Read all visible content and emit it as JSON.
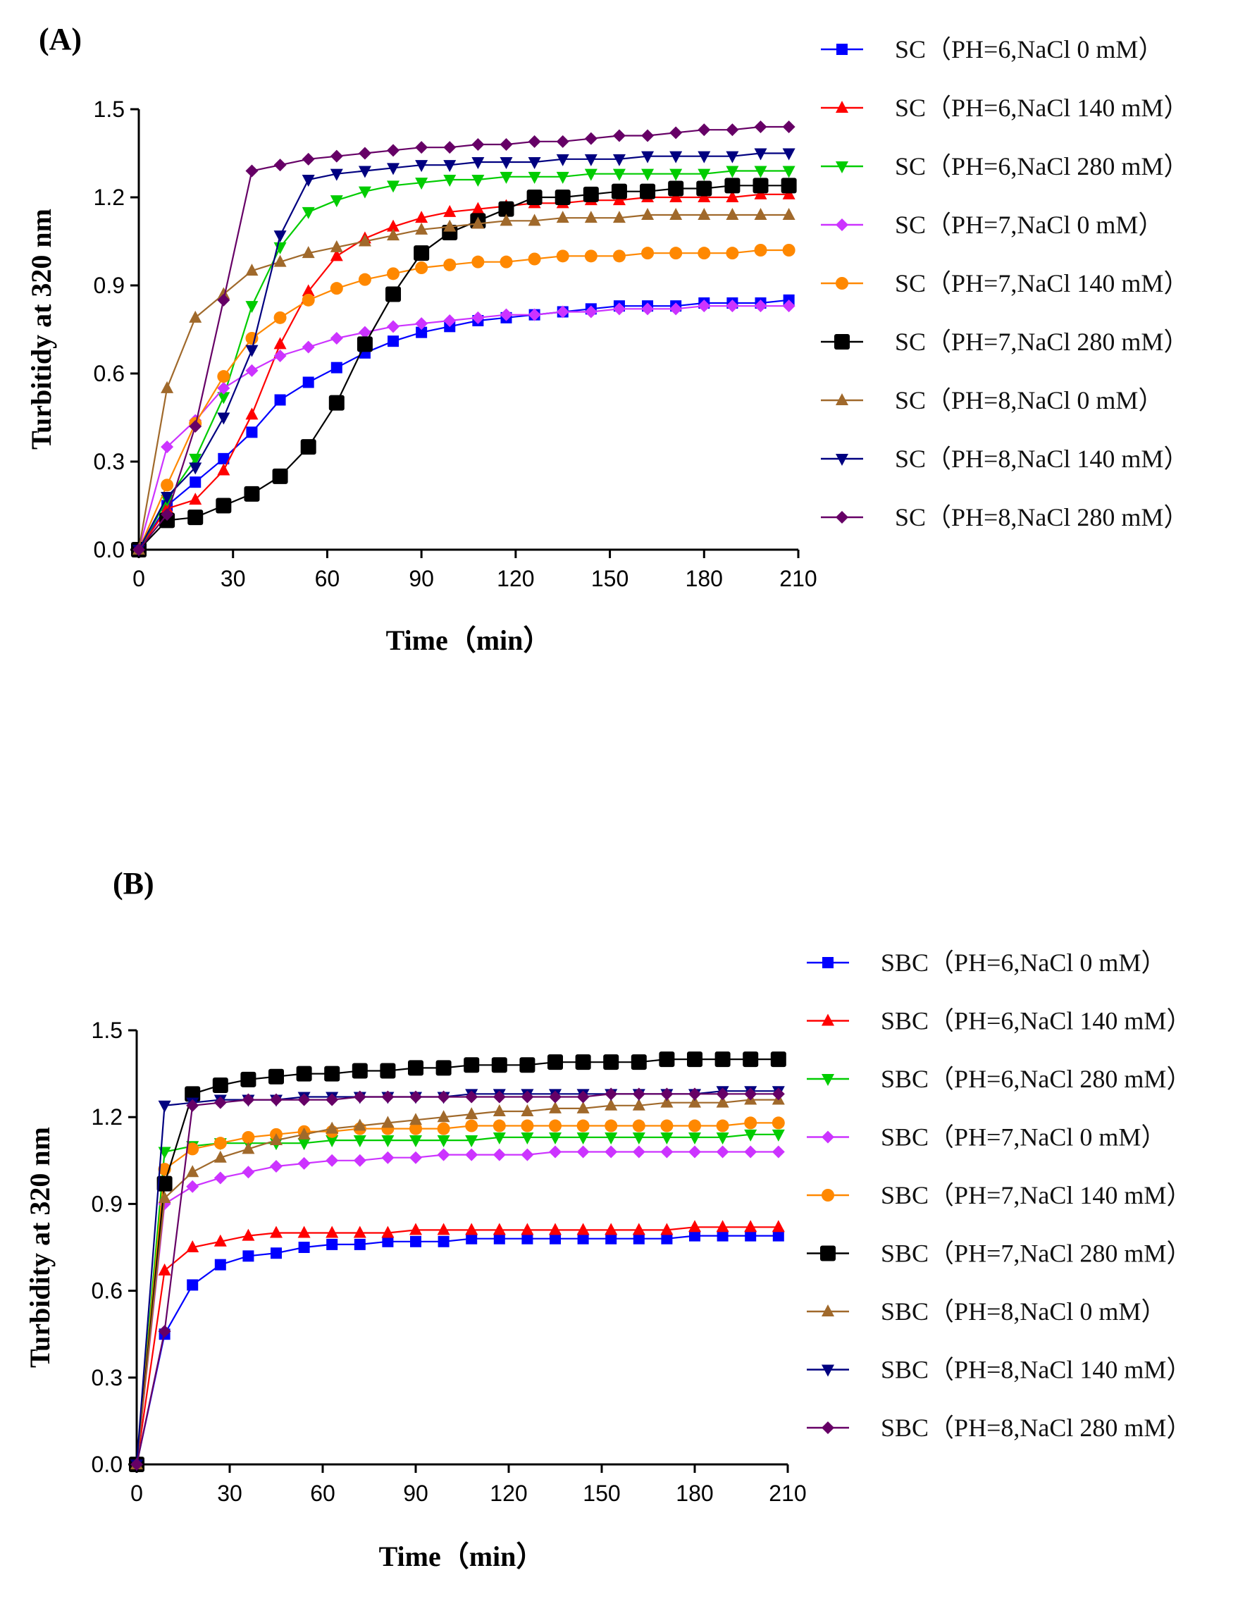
{
  "chart_data": [
    {
      "type": "line",
      "panel_label": "(A)",
      "xlabel": "Time（min）",
      "ylabel": "Turbitidy at 320 nm",
      "xlim": [
        0,
        210
      ],
      "ylim": [
        0,
        1.5
      ],
      "xticks": [
        0,
        30,
        60,
        90,
        120,
        150,
        180,
        210
      ],
      "xtick_labels": [
        "0",
        "30",
        "60",
        "90",
        "120",
        "150",
        "180",
        "210"
      ],
      "yticks": [
        0,
        0.3,
        0.6,
        0.9,
        1.2,
        1.5
      ],
      "ytick_labels": [
        "0.0",
        "0.3",
        "0.6",
        "0.9",
        "1.2",
        "1.5"
      ],
      "x": [
        0,
        9,
        18,
        27,
        36,
        45,
        54,
        63,
        72,
        81,
        90,
        99,
        108,
        117,
        126,
        135,
        144,
        153,
        162,
        171,
        180,
        189,
        198,
        207
      ],
      "legend_position": "right",
      "series": [
        {
          "name": "SC（PH=6,NaCl 0 mM）",
          "color": "#0000FF",
          "marker": "square",
          "values": [
            0,
            0.15,
            0.23,
            0.31,
            0.4,
            0.51,
            0.57,
            0.62,
            0.67,
            0.71,
            0.74,
            0.76,
            0.78,
            0.79,
            0.8,
            0.81,
            0.82,
            0.83,
            0.83,
            0.83,
            0.84,
            0.84,
            0.84,
            0.85
          ]
        },
        {
          "name": "SC（PH=6,NaCl 140 mM）",
          "color": "#FF0000",
          "marker": "triangle-up",
          "values": [
            0,
            0.14,
            0.17,
            0.27,
            0.46,
            0.7,
            0.88,
            1.0,
            1.06,
            1.1,
            1.13,
            1.15,
            1.16,
            1.17,
            1.18,
            1.18,
            1.19,
            1.19,
            1.2,
            1.2,
            1.2,
            1.2,
            1.21,
            1.21
          ]
        },
        {
          "name": "SC（PH=6,NaCl 280 mM）",
          "color": "#00CC00",
          "marker": "triangle-down",
          "values": [
            0,
            0.17,
            0.31,
            0.52,
            0.83,
            1.03,
            1.15,
            1.19,
            1.22,
            1.24,
            1.25,
            1.26,
            1.26,
            1.27,
            1.27,
            1.27,
            1.28,
            1.28,
            1.28,
            1.28,
            1.28,
            1.29,
            1.29,
            1.29
          ]
        },
        {
          "name": "SC（PH=7,NaCl 0 mM）",
          "color": "#CC33FF",
          "marker": "diamond",
          "values": [
            0,
            0.35,
            0.44,
            0.55,
            0.61,
            0.66,
            0.69,
            0.72,
            0.74,
            0.76,
            0.77,
            0.78,
            0.79,
            0.8,
            0.8,
            0.81,
            0.81,
            0.82,
            0.82,
            0.82,
            0.83,
            0.83,
            0.83,
            0.83
          ]
        },
        {
          "name": "SC（PH=7,NaCl 140 mM）",
          "color": "#FF8800",
          "marker": "circle",
          "values": [
            0,
            0.22,
            0.43,
            0.59,
            0.72,
            0.79,
            0.85,
            0.89,
            0.92,
            0.94,
            0.96,
            0.97,
            0.98,
            0.98,
            0.99,
            1.0,
            1.0,
            1.0,
            1.01,
            1.01,
            1.01,
            1.01,
            1.02,
            1.02
          ]
        },
        {
          "name": "SC（PH=7,NaCl 280 mM）",
          "color": "#000000",
          "marker": "square-big",
          "values": [
            0,
            0.1,
            0.11,
            0.15,
            0.19,
            0.25,
            0.35,
            0.5,
            0.7,
            0.87,
            1.01,
            1.08,
            1.12,
            1.16,
            1.2,
            1.2,
            1.21,
            1.22,
            1.22,
            1.23,
            1.23,
            1.24,
            1.24,
            1.24
          ]
        },
        {
          "name": "SC（PH=8,NaCl 0 mM）",
          "color": "#A0692B",
          "marker": "triangle-up",
          "values": [
            0,
            0.55,
            0.79,
            0.87,
            0.95,
            0.98,
            1.01,
            1.03,
            1.05,
            1.07,
            1.09,
            1.1,
            1.11,
            1.12,
            1.12,
            1.13,
            1.13,
            1.13,
            1.14,
            1.14,
            1.14,
            1.14,
            1.14,
            1.14
          ]
        },
        {
          "name": "SC（PH=8,NaCl 140 mM）",
          "color": "#000080",
          "marker": "triangle-down",
          "values": [
            0,
            0.18,
            0.28,
            0.45,
            0.68,
            1.07,
            1.26,
            1.28,
            1.29,
            1.3,
            1.31,
            1.31,
            1.32,
            1.32,
            1.32,
            1.33,
            1.33,
            1.33,
            1.34,
            1.34,
            1.34,
            1.34,
            1.35,
            1.35
          ]
        },
        {
          "name": "SC（PH=8,NaCl 280 mM）",
          "color": "#660066",
          "marker": "diamond",
          "values": [
            0,
            0.12,
            0.42,
            0.85,
            1.29,
            1.31,
            1.33,
            1.34,
            1.35,
            1.36,
            1.37,
            1.37,
            1.38,
            1.38,
            1.39,
            1.39,
            1.4,
            1.41,
            1.41,
            1.42,
            1.43,
            1.43,
            1.44,
            1.44
          ]
        }
      ]
    },
    {
      "type": "line",
      "panel_label": "(B)",
      "xlabel": "Time（min）",
      "ylabel": "Turbidity at 320 nm",
      "xlim": [
        0,
        210
      ],
      "ylim": [
        0,
        1.5
      ],
      "xticks": [
        0,
        30,
        60,
        90,
        120,
        150,
        180,
        210
      ],
      "xtick_labels": [
        "0",
        "30",
        "60",
        "90",
        "120",
        "150",
        "180",
        "210"
      ],
      "yticks": [
        0,
        0.3,
        0.6,
        0.9,
        1.2,
        1.5
      ],
      "ytick_labels": [
        "0.0",
        "0.3",
        "0.6",
        "0.9",
        "1.2",
        "1.5"
      ],
      "x": [
        0,
        9,
        18,
        27,
        36,
        45,
        54,
        63,
        72,
        81,
        90,
        99,
        108,
        117,
        126,
        135,
        144,
        153,
        162,
        171,
        180,
        189,
        198,
        207
      ],
      "legend_position": "right",
      "series": [
        {
          "name": "SBC（PH=6,NaCl 0 mM）",
          "color": "#0000FF",
          "marker": "square",
          "values": [
            0,
            0.45,
            0.62,
            0.69,
            0.72,
            0.73,
            0.75,
            0.76,
            0.76,
            0.77,
            0.77,
            0.77,
            0.78,
            0.78,
            0.78,
            0.78,
            0.78,
            0.78,
            0.78,
            0.78,
            0.79,
            0.79,
            0.79,
            0.79
          ]
        },
        {
          "name": "SBC（PH=6,NaCl 140 mM）",
          "color": "#FF0000",
          "marker": "triangle-up",
          "values": [
            0,
            0.67,
            0.75,
            0.77,
            0.79,
            0.8,
            0.8,
            0.8,
            0.8,
            0.8,
            0.81,
            0.81,
            0.81,
            0.81,
            0.81,
            0.81,
            0.81,
            0.81,
            0.81,
            0.81,
            0.82,
            0.82,
            0.82,
            0.82
          ]
        },
        {
          "name": "SBC（PH=6,NaCl 280 mM）",
          "color": "#00CC00",
          "marker": "triangle-down",
          "values": [
            0,
            1.08,
            1.1,
            1.11,
            1.11,
            1.11,
            1.11,
            1.12,
            1.12,
            1.12,
            1.12,
            1.12,
            1.12,
            1.13,
            1.13,
            1.13,
            1.13,
            1.13,
            1.13,
            1.13,
            1.13,
            1.13,
            1.14,
            1.14
          ]
        },
        {
          "name": "SBC（PH=7,NaCl 0 mM）",
          "color": "#CC33FF",
          "marker": "diamond",
          "values": [
            0,
            0.9,
            0.96,
            0.99,
            1.01,
            1.03,
            1.04,
            1.05,
            1.05,
            1.06,
            1.06,
            1.07,
            1.07,
            1.07,
            1.07,
            1.08,
            1.08,
            1.08,
            1.08,
            1.08,
            1.08,
            1.08,
            1.08,
            1.08
          ]
        },
        {
          "name": "SBC（PH=7,NaCl 140 mM）",
          "color": "#FF8800",
          "marker": "circle",
          "values": [
            0,
            1.02,
            1.09,
            1.11,
            1.13,
            1.14,
            1.15,
            1.15,
            1.16,
            1.16,
            1.16,
            1.16,
            1.17,
            1.17,
            1.17,
            1.17,
            1.17,
            1.17,
            1.17,
            1.17,
            1.17,
            1.17,
            1.18,
            1.18
          ]
        },
        {
          "name": "SBC（PH=7,NaCl 280 mM）",
          "color": "#000000",
          "marker": "square-big",
          "values": [
            0,
            0.97,
            1.28,
            1.31,
            1.33,
            1.34,
            1.35,
            1.35,
            1.36,
            1.36,
            1.37,
            1.37,
            1.38,
            1.38,
            1.38,
            1.39,
            1.39,
            1.39,
            1.39,
            1.4,
            1.4,
            1.4,
            1.4,
            1.4
          ]
        },
        {
          "name": "SBC（PH=8,NaCl 0 mM）",
          "color": "#A0692B",
          "marker": "triangle-up",
          "values": [
            0,
            0.92,
            1.01,
            1.06,
            1.09,
            1.12,
            1.14,
            1.16,
            1.17,
            1.18,
            1.19,
            1.2,
            1.21,
            1.22,
            1.22,
            1.23,
            1.23,
            1.24,
            1.24,
            1.25,
            1.25,
            1.25,
            1.26,
            1.26
          ]
        },
        {
          "name": "SBC（PH=8,NaCl 140 mM）",
          "color": "#000080",
          "marker": "triangle-down",
          "values": [
            0,
            1.24,
            1.25,
            1.26,
            1.26,
            1.26,
            1.27,
            1.27,
            1.27,
            1.27,
            1.27,
            1.27,
            1.28,
            1.28,
            1.28,
            1.28,
            1.28,
            1.28,
            1.28,
            1.28,
            1.28,
            1.29,
            1.29,
            1.29
          ]
        },
        {
          "name": "SBC（PH=8,NaCl 280 mM）",
          "color": "#660066",
          "marker": "diamond",
          "values": [
            0,
            0.46,
            1.24,
            1.25,
            1.26,
            1.26,
            1.26,
            1.26,
            1.27,
            1.27,
            1.27,
            1.27,
            1.27,
            1.27,
            1.27,
            1.27,
            1.27,
            1.28,
            1.28,
            1.28,
            1.28,
            1.28,
            1.28,
            1.28
          ]
        }
      ]
    }
  ]
}
